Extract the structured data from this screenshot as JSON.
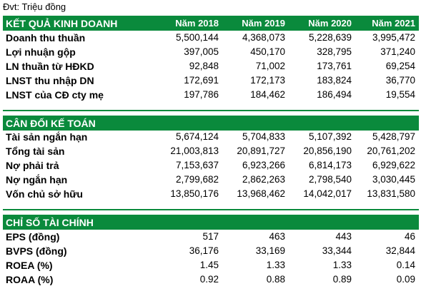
{
  "unit_note": "Đvt: Triệu đồng",
  "years": [
    "Năm 2018",
    "Năm 2019",
    "Năm 2020",
    "Năm 2021"
  ],
  "sections": [
    {
      "title": "KẾT QUẢ KINH DOANH",
      "rows": [
        {
          "label": "Doanh thu thuần",
          "values": [
            "5,500,144",
            "4,368,073",
            "5,228,639",
            "3,995,472"
          ]
        },
        {
          "label": "Lợi nhuận gộp",
          "values": [
            "397,005",
            "450,170",
            "328,795",
            "371,240"
          ]
        },
        {
          "label": "LN thuần từ HĐKD",
          "values": [
            "92,848",
            "71,002",
            "173,761",
            "69,254"
          ]
        },
        {
          "label": "LNST thu nhập DN",
          "values": [
            "172,691",
            "172,173",
            "183,824",
            "36,770"
          ]
        },
        {
          "label": "LNST của CĐ cty mẹ",
          "values": [
            "197,786",
            "184,462",
            "186,494",
            "19,554"
          ]
        }
      ]
    },
    {
      "title": "CÂN ĐỐI KẾ TOÁN",
      "rows": [
        {
          "label": "Tài sản ngắn hạn",
          "values": [
            "5,674,124",
            "5,704,833",
            "5,107,392",
            "5,428,797"
          ]
        },
        {
          "label": "Tổng tài sản",
          "values": [
            "21,003,813",
            "20,891,727",
            "20,856,190",
            "20,761,202"
          ]
        },
        {
          "label": "Nợ phải trả",
          "values": [
            "7,153,637",
            "6,923,266",
            "6,814,173",
            "6,929,622"
          ]
        },
        {
          "label": "Nợ ngắn hạn",
          "values": [
            "2,799,682",
            "2,862,263",
            "2,798,540",
            "3,030,445"
          ]
        },
        {
          "label": "Vốn chủ sở hữu",
          "values": [
            "13,850,176",
            "13,968,462",
            "14,042,017",
            "13,831,580"
          ]
        }
      ]
    },
    {
      "title": "CHỈ SỐ TÀI CHÍNH",
      "rows": [
        {
          "label": "EPS (đồng)",
          "values": [
            "517",
            "463",
            "443",
            "46"
          ]
        },
        {
          "label": "BVPS (đồng)",
          "values": [
            "36,176",
            "33,169",
            "33,344",
            "32,844"
          ]
        },
        {
          "label": "ROEA (%)",
          "values": [
            "1.45",
            "1.33",
            "1.33",
            "0.14"
          ]
        },
        {
          "label": "ROAA (%)",
          "values": [
            "0.92",
            "0.88",
            "0.89",
            "0.09"
          ]
        }
      ]
    }
  ]
}
